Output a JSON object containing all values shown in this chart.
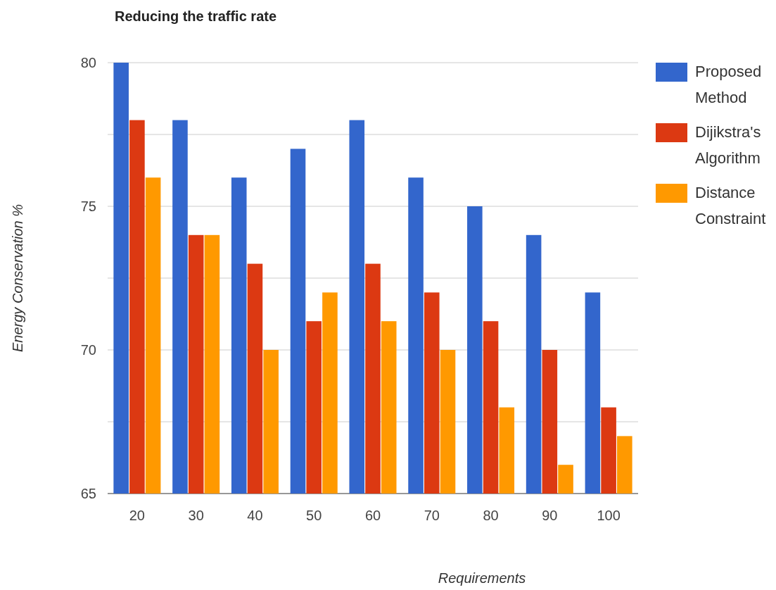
{
  "chart_data": {
    "type": "bar",
    "title": "Reducing the traffic rate",
    "xlabel": "Requirements",
    "ylabel": "Energy Conservation %",
    "categories": [
      "20",
      "30",
      "40",
      "50",
      "60",
      "70",
      "80",
      "90",
      "100"
    ],
    "series": [
      {
        "name": "Proposed Method",
        "color": "#3366cc",
        "values": [
          80,
          78,
          76,
          77,
          78,
          76,
          75,
          74,
          72
        ]
      },
      {
        "name": "Dijikstra's Algorithm",
        "color": "#dc3912",
        "values": [
          78,
          74,
          73,
          71,
          73,
          72,
          71,
          70,
          68
        ]
      },
      {
        "name": "Distance Constraint",
        "color": "#ff9900",
        "values": [
          76,
          74,
          70,
          72,
          71,
          70,
          68,
          66,
          67
        ]
      }
    ],
    "ylim": [
      65,
      80
    ],
    "yticks": [
      65,
      {
        "value": 67.5,
        "label": null
      },
      70,
      {
        "value": 72.5,
        "label": null
      },
      75,
      {
        "value": 77.5,
        "label": null
      },
      80
    ],
    "grid": "y",
    "legend": "right"
  }
}
